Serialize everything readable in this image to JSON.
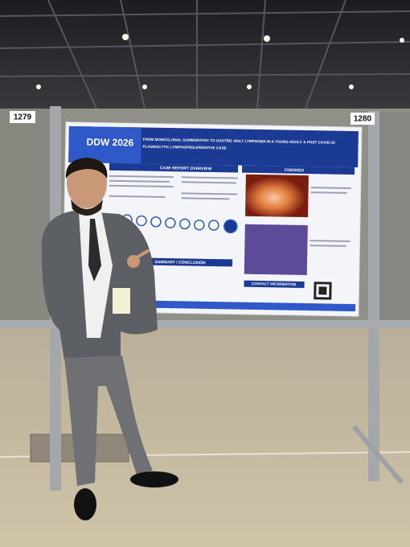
{
  "booth_numbers": [
    "1279",
    "1280"
  ],
  "poster": {
    "logo": "DDW 2026",
    "title_lines": [
      "FROM MONOCLONAL GAMMOPATHY TO GASTRIC MALT LYMPHOMA IN A YOUNG ADULT: A POST COVID-19",
      "PLASMACYTIC LYMPHOPROLIFERATIVE CASE"
    ],
    "sections": [
      "CASE REPORT OVERVIEW",
      "FINDINGS",
      "SUMMARY / CONCLUSION",
      "CONTACT INFORMATION"
    ]
  }
}
